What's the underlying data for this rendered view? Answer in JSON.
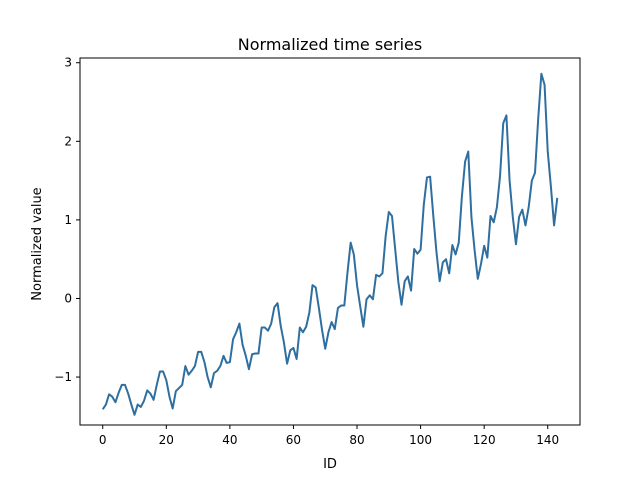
{
  "chart_data": {
    "type": "line",
    "title": "Normalized time series",
    "xlabel": "ID",
    "ylabel": "Normalized value",
    "xlim": [
      -7.15,
      150.15
    ],
    "ylim": [
      -1.61,
      3.06
    ],
    "xticks": [
      0,
      20,
      40,
      60,
      80,
      100,
      120,
      140
    ],
    "yticks": [
      -1,
      0,
      1,
      2,
      3
    ],
    "xtick_labels": [
      "0",
      "20",
      "40",
      "60",
      "80",
      "100",
      "120",
      "140"
    ],
    "ytick_labels": [
      "−1",
      "0",
      "1",
      "2",
      "3"
    ],
    "grid": false,
    "series": [
      {
        "color": "#2f6fa0",
        "x": [
          0,
          1,
          2,
          3,
          4,
          5,
          6,
          7,
          8,
          9,
          10,
          11,
          12,
          13,
          14,
          15,
          16,
          17,
          18,
          19,
          20,
          21,
          22,
          23,
          24,
          25,
          26,
          27,
          28,
          29,
          30,
          31,
          32,
          33,
          34,
          35,
          36,
          37,
          38,
          39,
          40,
          41,
          42,
          43,
          44,
          45,
          46,
          47,
          48,
          49,
          50,
          51,
          52,
          53,
          54,
          55,
          56,
          57,
          58,
          59,
          60,
          61,
          62,
          63,
          64,
          65,
          66,
          67,
          68,
          69,
          70,
          71,
          72,
          73,
          74,
          75,
          76,
          77,
          78,
          79,
          80,
          81,
          82,
          83,
          84,
          85,
          86,
          87,
          88,
          89,
          90,
          91,
          92,
          93,
          94,
          95,
          96,
          97,
          98,
          99,
          100,
          101,
          102,
          103,
          104,
          105,
          106,
          107,
          108,
          109,
          110,
          111,
          112,
          113,
          114,
          115,
          116,
          117,
          118,
          119,
          120,
          121,
          122,
          123,
          124,
          125,
          126,
          127,
          128,
          129,
          130,
          131,
          132,
          133,
          134,
          135,
          136,
          137,
          138,
          139,
          140,
          141,
          142,
          143
        ],
        "values": [
          -1.41,
          -1.35,
          -1.22,
          -1.25,
          -1.32,
          -1.2,
          -1.1,
          -1.1,
          -1.21,
          -1.35,
          -1.48,
          -1.35,
          -1.38,
          -1.3,
          -1.17,
          -1.21,
          -1.29,
          -1.1,
          -0.93,
          -0.93,
          -1.04,
          -1.25,
          -1.4,
          -1.18,
          -1.14,
          -1.1,
          -0.86,
          -0.97,
          -0.92,
          -0.86,
          -0.68,
          -0.68,
          -0.81,
          -1.0,
          -1.13,
          -0.95,
          -0.92,
          -0.86,
          -0.73,
          -0.82,
          -0.81,
          -0.52,
          -0.43,
          -0.32,
          -0.59,
          -0.73,
          -0.9,
          -0.71,
          -0.7,
          -0.7,
          -0.37,
          -0.37,
          -0.41,
          -0.32,
          -0.11,
          -0.06,
          -0.35,
          -0.56,
          -0.83,
          -0.66,
          -0.63,
          -0.77,
          -0.37,
          -0.43,
          -0.36,
          -0.18,
          0.17,
          0.14,
          -0.12,
          -0.4,
          -0.64,
          -0.43,
          -0.3,
          -0.39,
          -0.12,
          -0.09,
          -0.09,
          0.33,
          0.71,
          0.56,
          0.17,
          -0.1,
          -0.36,
          -0.01,
          0.04,
          -0.01,
          0.3,
          0.28,
          0.32,
          0.79,
          1.1,
          1.05,
          0.63,
          0.21,
          -0.08,
          0.22,
          0.28,
          0.1,
          0.63,
          0.57,
          0.62,
          1.19,
          1.54,
          1.55,
          1.05,
          0.59,
          0.22,
          0.46,
          0.5,
          0.32,
          0.68,
          0.56,
          0.71,
          1.3,
          1.74,
          1.87,
          1.03,
          0.61,
          0.25,
          0.44,
          0.67,
          0.52,
          1.05,
          0.97,
          1.16,
          1.56,
          2.23,
          2.33,
          1.5,
          1.04,
          0.69,
          1.04,
          1.13,
          0.93,
          1.16,
          1.5,
          1.6,
          2.29,
          2.86,
          2.72,
          1.87,
          1.42,
          0.93,
          1.28
        ]
      }
    ]
  }
}
